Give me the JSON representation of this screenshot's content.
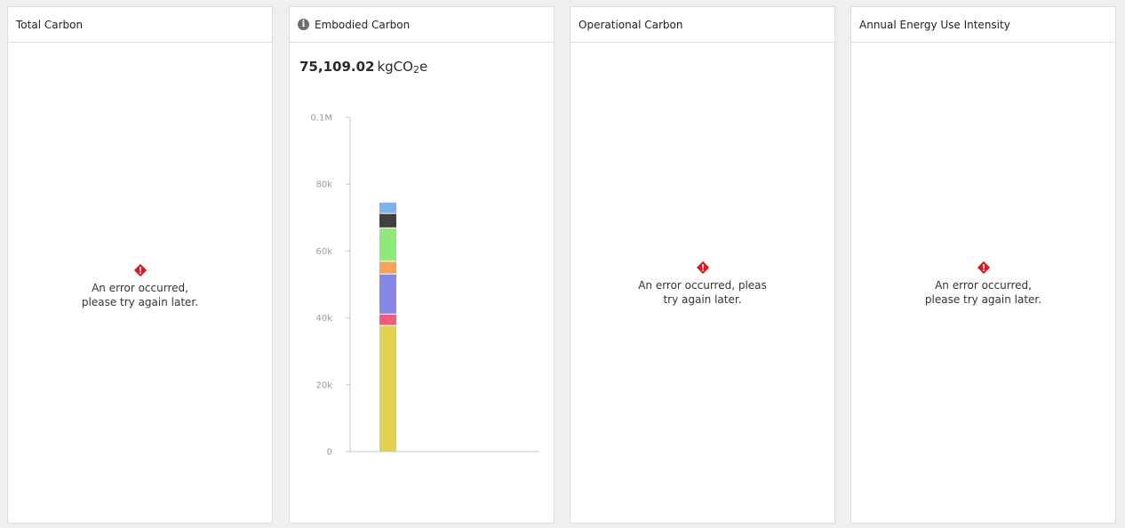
{
  "cards": [
    {
      "title": "Total Carbon",
      "error": "An error occurred, please try again later."
    },
    {
      "title": "Embodied Carbon",
      "value": "75,109.02",
      "unit_prefix": "kgCO",
      "unit_sub": "2",
      "unit_suffix": "e"
    },
    {
      "title": "Operational Carbon",
      "error": "An error occurred, pleas try again later."
    },
    {
      "title": "Annual Energy Use Intensity",
      "error": "An error occurred, please try again later."
    }
  ],
  "colors": {
    "error": "#d71c24",
    "info": "#6e6e6e"
  },
  "chart_data": {
    "type": "bar",
    "stacked": true,
    "ylim": [
      0,
      100000
    ],
    "y_ticks": [
      "0",
      "20k",
      "40k",
      "60k",
      "80k",
      "0.1M"
    ],
    "y_tick_values": [
      0,
      20000,
      40000,
      60000,
      80000,
      100000
    ],
    "grid": false,
    "series": [
      {
        "values": [
          37600
        ],
        "color": "#e2d14e"
      },
      {
        "values": [
          3400
        ],
        "color": "#ef5c7c"
      },
      {
        "values": [
          12000
        ],
        "color": "#8586e8"
      },
      {
        "values": [
          3800
        ],
        "color": "#f5a25a"
      },
      {
        "values": [
          10000
        ],
        "color": "#8fe87a"
      },
      {
        "values": [
          4300
        ],
        "color": "#404040"
      },
      {
        "values": [
          3400
        ],
        "color": "#7db3ea"
      }
    ]
  }
}
